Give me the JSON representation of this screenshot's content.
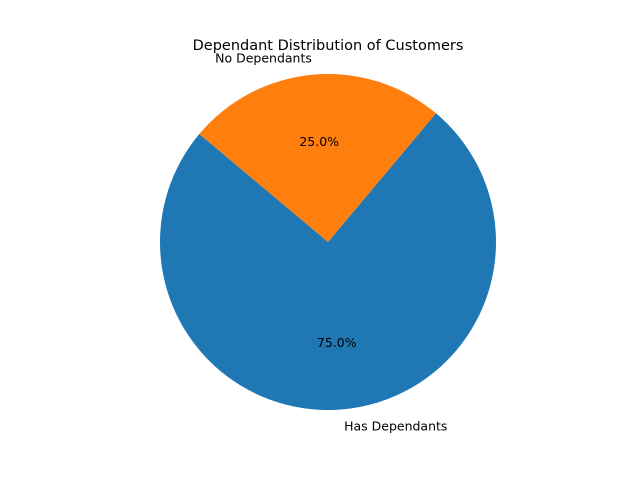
{
  "chart_data": {
    "type": "pie",
    "title": "Dependant Distribution of Customers",
    "labels": [
      "Has Dependants",
      "No Dependants"
    ],
    "values": [
      75.0,
      25.0
    ],
    "percent_labels": [
      "75.0%",
      "25.0%"
    ],
    "colors": [
      "#1f77b4",
      "#ff7f0e"
    ],
    "start_angle_deg": 140,
    "legend": "none"
  }
}
